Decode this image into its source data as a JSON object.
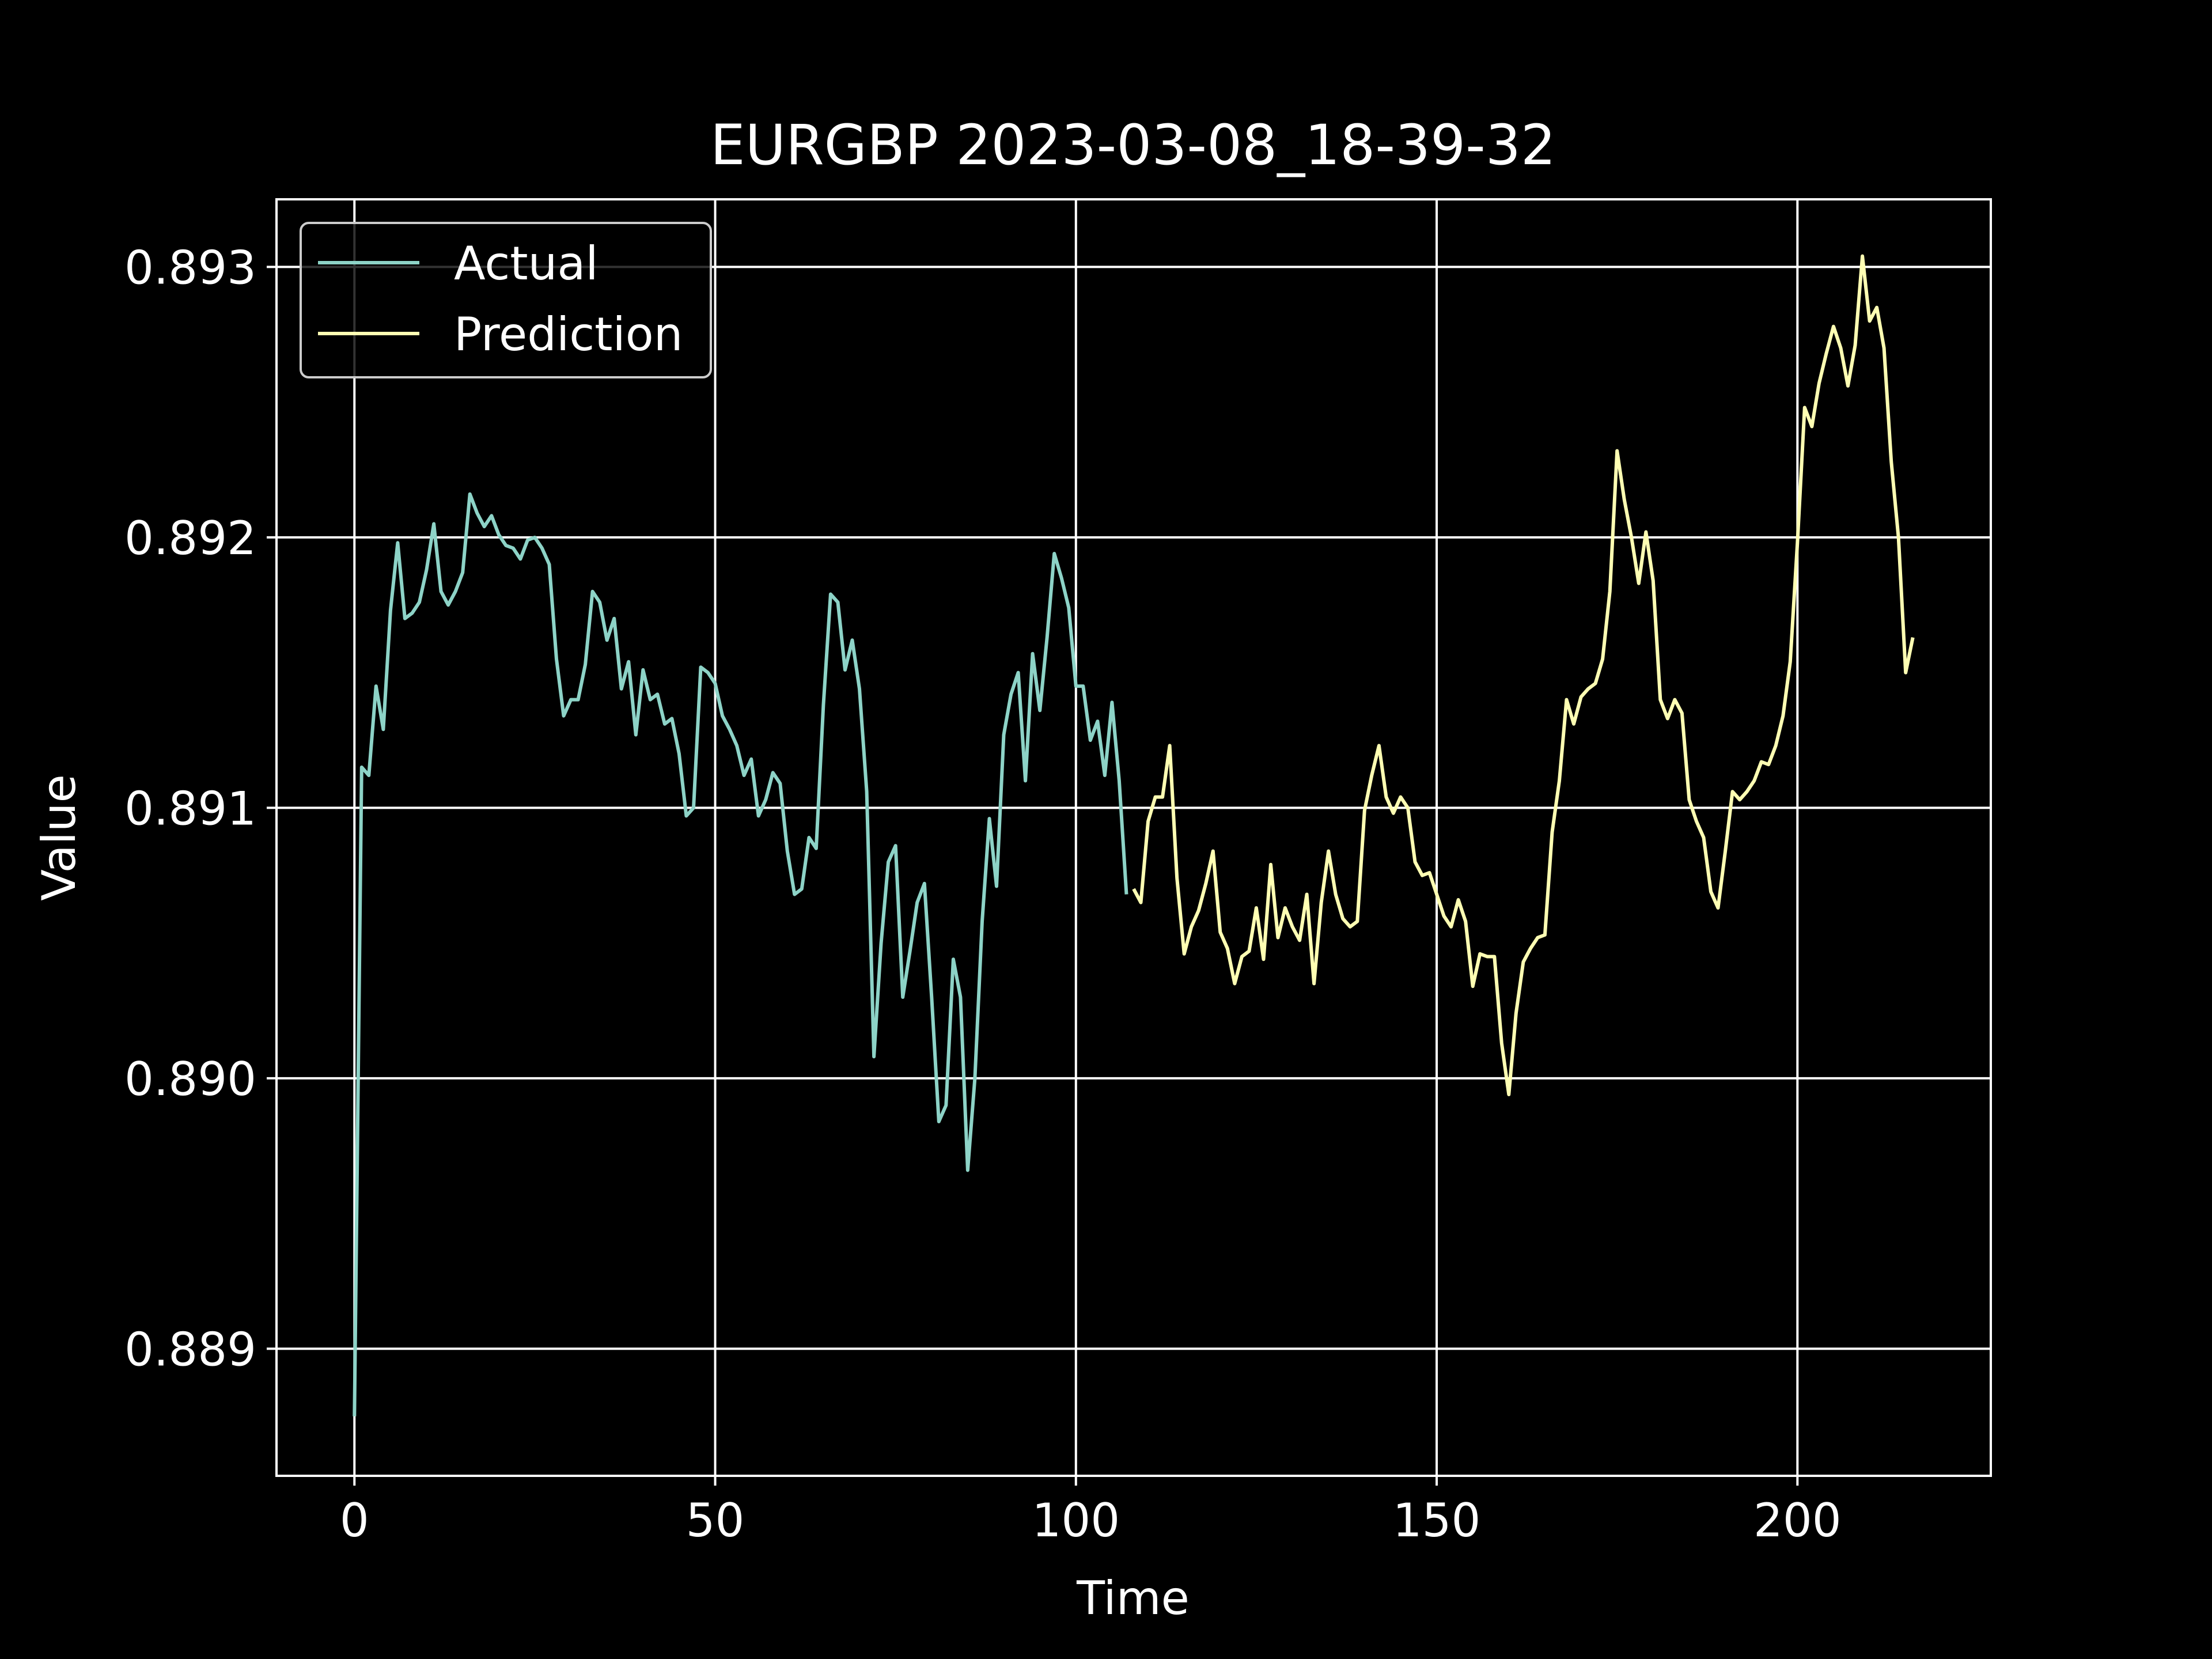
{
  "chart_data": {
    "type": "line",
    "title": "EURGBP 2023-03-08_18-39-32",
    "xlabel": "Time",
    "ylabel": "Value",
    "xlim": [
      -10.8,
      226.8
    ],
    "ylim": [
      0.88853,
      0.89325
    ],
    "xticks": [
      0,
      50,
      100,
      150,
      200
    ],
    "xtick_labels": [
      "0",
      "50",
      "100",
      "150",
      "200"
    ],
    "yticks": [
      0.889,
      0.89,
      0.891,
      0.892,
      0.893
    ],
    "ytick_labels": [
      "0.889",
      "0.890",
      "0.891",
      "0.892",
      "0.893"
    ],
    "grid": true,
    "legend_position": "upper-left",
    "background": "#000000",
    "series": [
      {
        "name": "Actual",
        "color": "#8dd3c7",
        "x_start": 0,
        "values": [
          0.88875,
          0.89115,
          0.89112,
          0.89145,
          0.89129,
          0.89173,
          0.89198,
          0.8917,
          0.89172,
          0.89176,
          0.89188,
          0.89205,
          0.8918,
          0.89175,
          0.8918,
          0.89187,
          0.89216,
          0.89209,
          0.89204,
          0.89208,
          0.89201,
          0.89197,
          0.89196,
          0.89192,
          0.89199,
          0.892,
          0.89196,
          0.8919,
          0.89155,
          0.89134,
          0.8914,
          0.8914,
          0.89153,
          0.8918,
          0.89176,
          0.89162,
          0.8917,
          0.89144,
          0.89154,
          0.89127,
          0.89151,
          0.8914,
          0.89142,
          0.89131,
          0.89133,
          0.8912,
          0.89097,
          0.891,
          0.89152,
          0.8915,
          0.89146,
          0.89134,
          0.89129,
          0.89123,
          0.89112,
          0.89118,
          0.89097,
          0.89103,
          0.89113,
          0.89109,
          0.89084,
          0.89068,
          0.8907,
          0.89089,
          0.89085,
          0.89138,
          0.89179,
          0.89176,
          0.89151,
          0.89162,
          0.89144,
          0.89106,
          0.89008,
          0.8905,
          0.8908,
          0.89086,
          0.8903,
          0.89047,
          0.89065,
          0.89072,
          0.8903,
          0.88984,
          0.8899,
          0.89044,
          0.8903,
          0.88966,
          0.89,
          0.89058,
          0.89096,
          0.89071,
          0.89127,
          0.89142,
          0.8915,
          0.8911,
          0.89157,
          0.89136,
          0.89163,
          0.89194,
          0.89185,
          0.89174,
          0.89145,
          0.89145,
          0.89125,
          0.89132,
          0.89112,
          0.89139,
          0.8911,
          0.89068
        ]
      },
      {
        "name": "Prediction",
        "color": "#ffffb3",
        "x_start": 108,
        "values": [
          0.8907,
          0.89065,
          0.89095,
          0.89104,
          0.89104,
          0.89123,
          0.89074,
          0.89046,
          0.89056,
          0.89062,
          0.89072,
          0.89084,
          0.89054,
          0.89048,
          0.89035,
          0.89045,
          0.89047,
          0.89063,
          0.89044,
          0.89079,
          0.89052,
          0.89063,
          0.89056,
          0.89051,
          0.89068,
          0.89035,
          0.89065,
          0.89084,
          0.89068,
          0.89059,
          0.89056,
          0.89058,
          0.89099,
          0.89112,
          0.89123,
          0.89104,
          0.89098,
          0.89104,
          0.891,
          0.8908,
          0.89075,
          0.89076,
          0.89068,
          0.8906,
          0.89056,
          0.89066,
          0.89058,
          0.89034,
          0.89046,
          0.89045,
          0.89045,
          0.89013,
          0.88994,
          0.89024,
          0.89043,
          0.89048,
          0.89052,
          0.89053,
          0.89091,
          0.8911,
          0.8914,
          0.89131,
          0.89141,
          0.89144,
          0.89146,
          0.89155,
          0.8918,
          0.89232,
          0.89214,
          0.892,
          0.89183,
          0.89202,
          0.89184,
          0.8914,
          0.89133,
          0.8914,
          0.89135,
          0.89103,
          0.89095,
          0.89089,
          0.89069,
          0.89063,
          0.89084,
          0.89106,
          0.89103,
          0.89106,
          0.8911,
          0.89117,
          0.89116,
          0.89123,
          0.89134,
          0.89154,
          0.89198,
          0.89248,
          0.89241,
          0.89257,
          0.89268,
          0.89278,
          0.8927,
          0.89256,
          0.89271,
          0.89304,
          0.8928,
          0.89285,
          0.8927,
          0.89228,
          0.892,
          0.8915,
          0.89163
        ]
      }
    ]
  }
}
